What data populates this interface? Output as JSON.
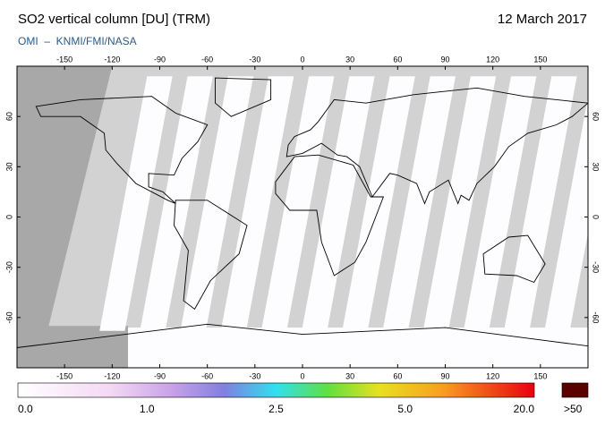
{
  "header": {
    "title": "SO2 vertical column [DU] (TRM)",
    "date": "12 March 2017",
    "credit": "OMI  –  KNMI/FMI/NASA"
  },
  "map": {
    "lonlim": [
      -180,
      180
    ],
    "latlim": [
      -90,
      90
    ],
    "lon_ticks": [
      -150,
      -120,
      -90,
      -60,
      -30,
      0,
      30,
      60,
      90,
      120,
      150
    ],
    "lat_ticks": [
      60,
      30,
      0,
      -30,
      -60
    ]
  },
  "colorbar": {
    "ticks": [
      {
        "value": 0,
        "label": "0.0"
      },
      {
        "value": 1,
        "label": "1.0"
      },
      {
        "value": 2.5,
        "label": "2.5"
      },
      {
        "value": 5,
        "label": "5.0"
      },
      {
        "value": 20,
        "label": "20.0"
      }
    ],
    "overflow_label": ">50"
  }
}
